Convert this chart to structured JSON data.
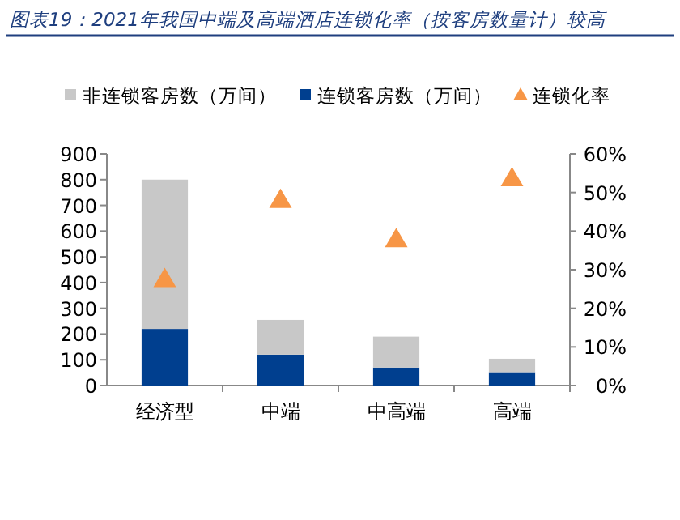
{
  "chart_data": {
    "type": "bar",
    "title": "图表19：2021年我国中端及高端酒店连锁化率（按客房数量计）较高",
    "stacked": true,
    "legend": "top",
    "grid": false,
    "categories": [
      "经济型",
      "中端",
      "中高端",
      "高端"
    ],
    "series": [
      {
        "name": "连锁客房数（万间）",
        "color": "#003f8f",
        "values": [
          220,
          120,
          70,
          52
        ]
      },
      {
        "name": "非连锁客房数（万间）",
        "color": "#c8c8c8",
        "values": [
          580,
          135,
          120,
          52
        ]
      },
      {
        "name": "连锁化率",
        "type": "scatter",
        "axis": "y2",
        "marker": "triangle",
        "color": "#f79646",
        "values": [
          27.6,
          48.1,
          37.9,
          53.7
        ]
      }
    ],
    "ylim": [
      0,
      900
    ],
    "yticks": [
      0,
      100,
      200,
      300,
      400,
      500,
      600,
      700,
      800,
      900
    ],
    "y2lim": [
      0,
      60
    ],
    "y2ticks": [
      {
        "value": 0,
        "label": "0%"
      },
      {
        "value": 10,
        "label": "10%"
      },
      {
        "value": 20,
        "label": "20%"
      },
      {
        "value": 30,
        "label": "30%"
      },
      {
        "value": 40,
        "label": "40%"
      },
      {
        "value": 50,
        "label": "50%"
      },
      {
        "value": 60,
        "label": "60%"
      }
    ]
  }
}
